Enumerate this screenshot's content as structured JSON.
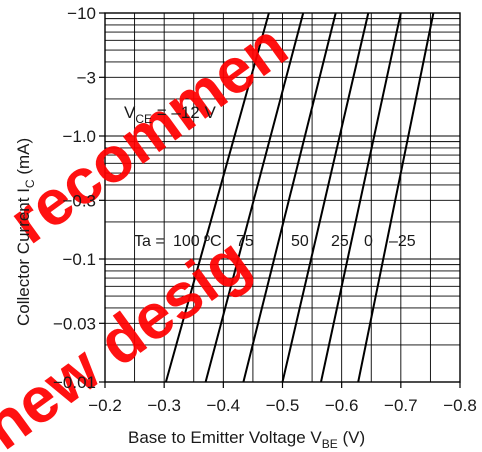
{
  "chart_data": {
    "type": "line",
    "x_scale": "linear",
    "y_scale": "log",
    "xlim": [
      -0.2,
      -0.8
    ],
    "ylim": [
      -0.01,
      -10
    ],
    "x_ticks": [
      "−0.2",
      "−0.3",
      "−0.4",
      "−0.5",
      "−0.6",
      "−0.7",
      "−0.8"
    ],
    "x_tick_values": [
      -0.2,
      -0.3,
      -0.4,
      -0.5,
      -0.6,
      -0.7,
      -0.8
    ],
    "y_ticks": [
      "−0.01",
      "−0.03",
      "−0.1",
      "−0.3",
      "−1.0",
      "−3",
      "−10"
    ],
    "y_tick_values": [
      -0.01,
      -0.03,
      -0.1,
      -0.3,
      -1.0,
      -3,
      -10
    ],
    "xlabel": {
      "main": "Base to Emitter Voltage  V",
      "sub": "BE",
      "unit": "  (V)"
    },
    "ylabel": {
      "main": "Collector Current  I",
      "sub": "C",
      "unit": "  (mA)"
    },
    "condition": {
      "main": "V",
      "sub": "CE",
      "rest": " = –12 V"
    },
    "grid": true,
    "label_prefix": "Ta =",
    "series": [
      {
        "name": "100 ºC",
        "x": [
          -0.303,
          -0.477
        ],
        "y": [
          -0.01,
          -10
        ]
      },
      {
        "name": "75",
        "x": [
          -0.37,
          -0.535
        ],
        "y": [
          -0.01,
          -10
        ]
      },
      {
        "name": "50",
        "x": [
          -0.434,
          -0.59
        ],
        "y": [
          -0.01,
          -10
        ]
      },
      {
        "name": "25",
        "x": [
          -0.5,
          -0.645
        ],
        "y": [
          -0.01,
          -10
        ]
      },
      {
        "name": "0",
        "x": [
          -0.565,
          -0.7
        ],
        "y": [
          -0.01,
          -10
        ]
      },
      {
        "name": "–25",
        "x": [
          -0.628,
          -0.755
        ],
        "y": [
          -0.01,
          -10
        ]
      }
    ]
  },
  "watermark": {
    "word1": "recommen",
    "word2": "new desig",
    "color": "#ff0000"
  }
}
